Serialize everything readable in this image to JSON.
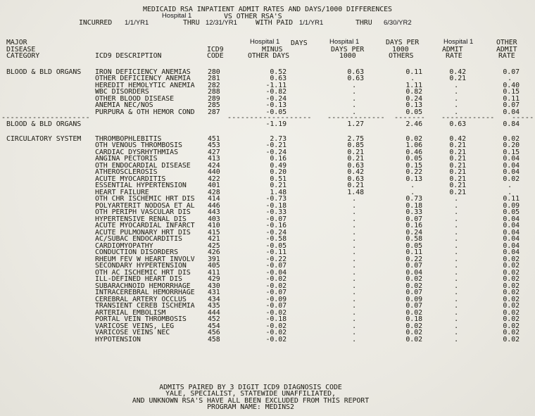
{
  "report": {
    "title": "MEDICAID RSA INPATIENT ADMIT RATES AND DAYS/1000 DIFFERENCES",
    "hospital_overlay": "Hospital 1",
    "vs_line": "VS OTHER RSA'S",
    "period": {
      "incurred": "INCURRED",
      "from": "1/1/YR1",
      "thru1": "THRU",
      "to": "12/31/YR1",
      "with_paid": "WITH PAID",
      "paid_from": "1/1/YR1",
      "thru2": "THRU",
      "paid_to": "6/30/YR2"
    }
  },
  "columns": {
    "major": [
      "MAJOR",
      "DISEASE",
      "CATEGORY"
    ],
    "icd9_description": "ICD9 DESCRIPTION",
    "icd9_code": [
      "ICD9",
      "CODE"
    ],
    "days_minus": {
      "overlay": "Hospital 1",
      "days": "DAYS",
      "minus": "MINUS",
      "other_days": "OTHER DAYS"
    },
    "h1_days_per_1000": {
      "overlay": "Hospital 1",
      "l1": "DAYS PER",
      "l2": "1000"
    },
    "days_per_1000_others": [
      "DAYS PER",
      "1000",
      "OTHERS"
    ],
    "h1_admit_rate": {
      "overlay": "Hospital 1",
      "l1": "ADMIT",
      "l2": "RATE"
    },
    "other_admit_rate": [
      "OTHER",
      "ADMIT",
      "RATE"
    ]
  },
  "sections": [
    {
      "category": "BLOOD & BLD ORGANS",
      "rows": [
        {
          "d": "IRON DEFICIENCY ANEMIAS",
          "c": "280",
          "v4": "0.52",
          "v5": "0.63",
          "v6": "0.11",
          "v7": "0.42",
          "v8": "0.07"
        },
        {
          "d": "OTHER DEFICIENCY ANEMIA",
          "c": "281",
          "v4": "0.63",
          "v5": "0.63",
          "v6": ".",
          "v7": "0.21",
          "v8": "."
        },
        {
          "d": "HEREDIT HEMOLYTIC ANEMIA",
          "c": "282",
          "v4": "-1.11",
          "v5": ".",
          "v6": "1.11",
          "v7": ".",
          "v8": "0.40"
        },
        {
          "d": "WBC DISORDERS",
          "c": "288",
          "v4": "-0.82",
          "v5": ".",
          "v6": "0.82",
          "v7": ".",
          "v8": "0.15"
        },
        {
          "d": "OTHER BLOOD DISEASE",
          "c": "289",
          "v4": "-0.24",
          "v5": ".",
          "v6": "0.24",
          "v7": ".",
          "v8": "0.11"
        },
        {
          "d": "ANEMIA NEC/NOS",
          "c": "285",
          "v4": "-0.13",
          "v5": ".",
          "v6": "0.13",
          "v7": ".",
          "v8": "0.07"
        },
        {
          "d": "PURPURA & OTH HEMOR COND",
          "c": "287",
          "v4": "-0.05",
          "v5": ".",
          "v6": "0.05",
          "v7": ".",
          "v8": "0.04"
        }
      ],
      "sep": {
        "cat": "--------------------",
        "v4": "-------------------",
        "v5": "-------------",
        "v6": "-------",
        "v7": "------------",
        "v8": "-----"
      },
      "total": {
        "v4": "-1.19",
        "v5": "1.27",
        "v6": "2.46",
        "v7": "0.63",
        "v8": "0.84"
      }
    },
    {
      "category": "CIRCULATORY SYSTEM",
      "rows": [
        {
          "d": "THROMBOPHLEBITIS",
          "c": "451",
          "v4": "2.73",
          "v5": "2.75",
          "v6": "0.02",
          "v7": "0.42",
          "v8": "0.02"
        },
        {
          "d": "OTH VENOUS THROMBOSIS",
          "c": "453",
          "v4": "-0.21",
          "v5": "0.85",
          "v6": "1.06",
          "v7": "0.21",
          "v8": "0.20"
        },
        {
          "d": "CARDIAC DYSRHYTHMIAS",
          "c": "427",
          "v4": "-0.24",
          "v5": "0.21",
          "v6": "0.46",
          "v7": "0.21",
          "v8": "0.15"
        },
        {
          "d": "ANGINA PECTORIS",
          "c": "413",
          "v4": "0.16",
          "v5": "0.21",
          "v6": "0.05",
          "v7": "0.21",
          "v8": "0.04"
        },
        {
          "d": "OTH ENDOCARDIAL DISEASE",
          "c": "424",
          "v4": "0.49",
          "v5": "0.63",
          "v6": "0.15",
          "v7": "0.21",
          "v8": "0.04"
        },
        {
          "d": "ATHEROSCLEROSIS",
          "c": "440",
          "v4": "0.20",
          "v5": "0.42",
          "v6": "0.22",
          "v7": "0.21",
          "v8": "0.04"
        },
        {
          "d": "ACUTE MYOCARDITIS",
          "c": "422",
          "v4": "0.51",
          "v5": "0.63",
          "v6": "0.13",
          "v7": "0.21",
          "v8": "0.02"
        },
        {
          "d": "ESSENTIAL HYPERTENSION",
          "c": "401",
          "v4": "0.21",
          "v5": "0.21",
          "v6": ".",
          "v7": "0.21",
          "v8": "."
        },
        {
          "d": "HEART FAILURE",
          "c": "428",
          "v4": "1.48",
          "v5": "1.48",
          "v6": ".",
          "v7": "0.21",
          "v8": "."
        },
        {
          "d": "OTH CHR ISCHEMIC HRT DIS",
          "c": "414",
          "v4": "-0.73",
          "v5": ".",
          "v6": "0.73",
          "v7": ".",
          "v8": "0.11"
        },
        {
          "d": "POLYARTERIT NODOSA ET AL",
          "c": "446",
          "v4": "-0.18",
          "v5": ".",
          "v6": "0.18",
          "v7": ".",
          "v8": "0.09"
        },
        {
          "d": "OTH PERIPH VASCULAR DIS",
          "c": "443",
          "v4": "-0.33",
          "v5": ".",
          "v6": "0.33",
          "v7": ".",
          "v8": "0.05"
        },
        {
          "d": "HYPERTENSIVE RENAL DIS",
          "c": "403",
          "v4": "-0.07",
          "v5": ".",
          "v6": "0.07",
          "v7": ".",
          "v8": "0.04"
        },
        {
          "d": "ACUTE MYOCARDIAL INFARCT",
          "c": "410",
          "v4": "-0.16",
          "v5": ".",
          "v6": "0.16",
          "v7": ".",
          "v8": "0.04"
        },
        {
          "d": "ACUTE PULMONARY HRT DIS",
          "c": "415",
          "v4": "-0.24",
          "v5": ".",
          "v6": "0.24",
          "v7": ".",
          "v8": "0.04"
        },
        {
          "d": "AC/SUBAC ENDOCARDITIS",
          "c": "421",
          "v4": "-0.58",
          "v5": ".",
          "v6": "0.58",
          "v7": ".",
          "v8": "0.04"
        },
        {
          "d": "CARDIOMYOPATHY",
          "c": "425",
          "v4": "-0.05",
          "v5": ".",
          "v6": "0.05",
          "v7": ".",
          "v8": "0.04"
        },
        {
          "d": "CONDUCTION DISORDERS",
          "c": "426",
          "v4": "-0.11",
          "v5": ".",
          "v6": "0.11",
          "v7": ".",
          "v8": "0.04"
        },
        {
          "d": "RHEUM FEV W HEART INVOLV",
          "c": "391",
          "v4": "-0.22",
          "v5": ".",
          "v6": "0.22",
          "v7": ".",
          "v8": "0.02"
        },
        {
          "d": "SECONDARY HYPERTENSION",
          "c": "405",
          "v4": "-0.07",
          "v5": ".",
          "v6": "0.07",
          "v7": ".",
          "v8": "0.02"
        },
        {
          "d": "OTH AC ISCHEMIC HRT DIS",
          "c": "411",
          "v4": "-0.04",
          "v5": ".",
          "v6": "0.04",
          "v7": ".",
          "v8": "0.02"
        },
        {
          "d": "ILL-DEFINED HEART DIS",
          "c": "429",
          "v4": "-0.02",
          "v5": ".",
          "v6": "0.02",
          "v7": ".",
          "v8": "0.02"
        },
        {
          "d": "SUBARACHNOID HEMORRHAGE",
          "c": "430",
          "v4": "-0.02",
          "v5": ".",
          "v6": "0.02",
          "v7": ".",
          "v8": "0.02"
        },
        {
          "d": "INTRACEREBRAL HEMORRHAGE",
          "c": "431",
          "v4": "-0.07",
          "v5": ".",
          "v6": "0.07",
          "v7": ".",
          "v8": "0.02"
        },
        {
          "d": "CEREBRAL ARTERY OCCLUS",
          "c": "434",
          "v4": "-0.09",
          "v5": ".",
          "v6": "0.09",
          "v7": ".",
          "v8": "0.02"
        },
        {
          "d": "TRANSIENT CEREB ISCHEMIA",
          "c": "435",
          "v4": "-0.07",
          "v5": ".",
          "v6": "0.07",
          "v7": ".",
          "v8": "0.02"
        },
        {
          "d": "ARTERIAL EMBOLISM",
          "c": "444",
          "v4": "-0.02",
          "v5": ".",
          "v6": "0.02",
          "v7": ".",
          "v8": "0.02"
        },
        {
          "d": "PORTAL VEIN THROMBOSIS",
          "c": "452",
          "v4": "-0.18",
          "v5": ".",
          "v6": "0.18",
          "v7": ".",
          "v8": "0.02"
        },
        {
          "d": "VARICOSE VEINS, LEG",
          "c": "454",
          "v4": "-0.02",
          "v5": ".",
          "v6": "0.02",
          "v7": ".",
          "v8": "0.02"
        },
        {
          "d": "VARICOSE VEINS NEC",
          "c": "456",
          "v4": "-0.02",
          "v5": ".",
          "v6": "0.02",
          "v7": ".",
          "v8": "0.02"
        },
        {
          "d": "HYPOTENSION",
          "c": "458",
          "v4": "-0.02",
          "v5": ".",
          "v6": "0.02",
          "v7": ".",
          "v8": "0.02"
        }
      ],
      "sep": null,
      "total": null
    }
  ],
  "footer": {
    "lines": [
      "ADMITS PAIRED BY 3 DIGIT ICD9 DIAGNOSIS CODE",
      "YALE, SPECIALIST, STATEWIDE UNAFFILIATED,",
      "AND UNKNOWN RSA'S HAVE ALL BEEN EXCLUDED FROM THIS REPORT",
      "PROGRAM NAME: MEDINS2"
    ]
  }
}
